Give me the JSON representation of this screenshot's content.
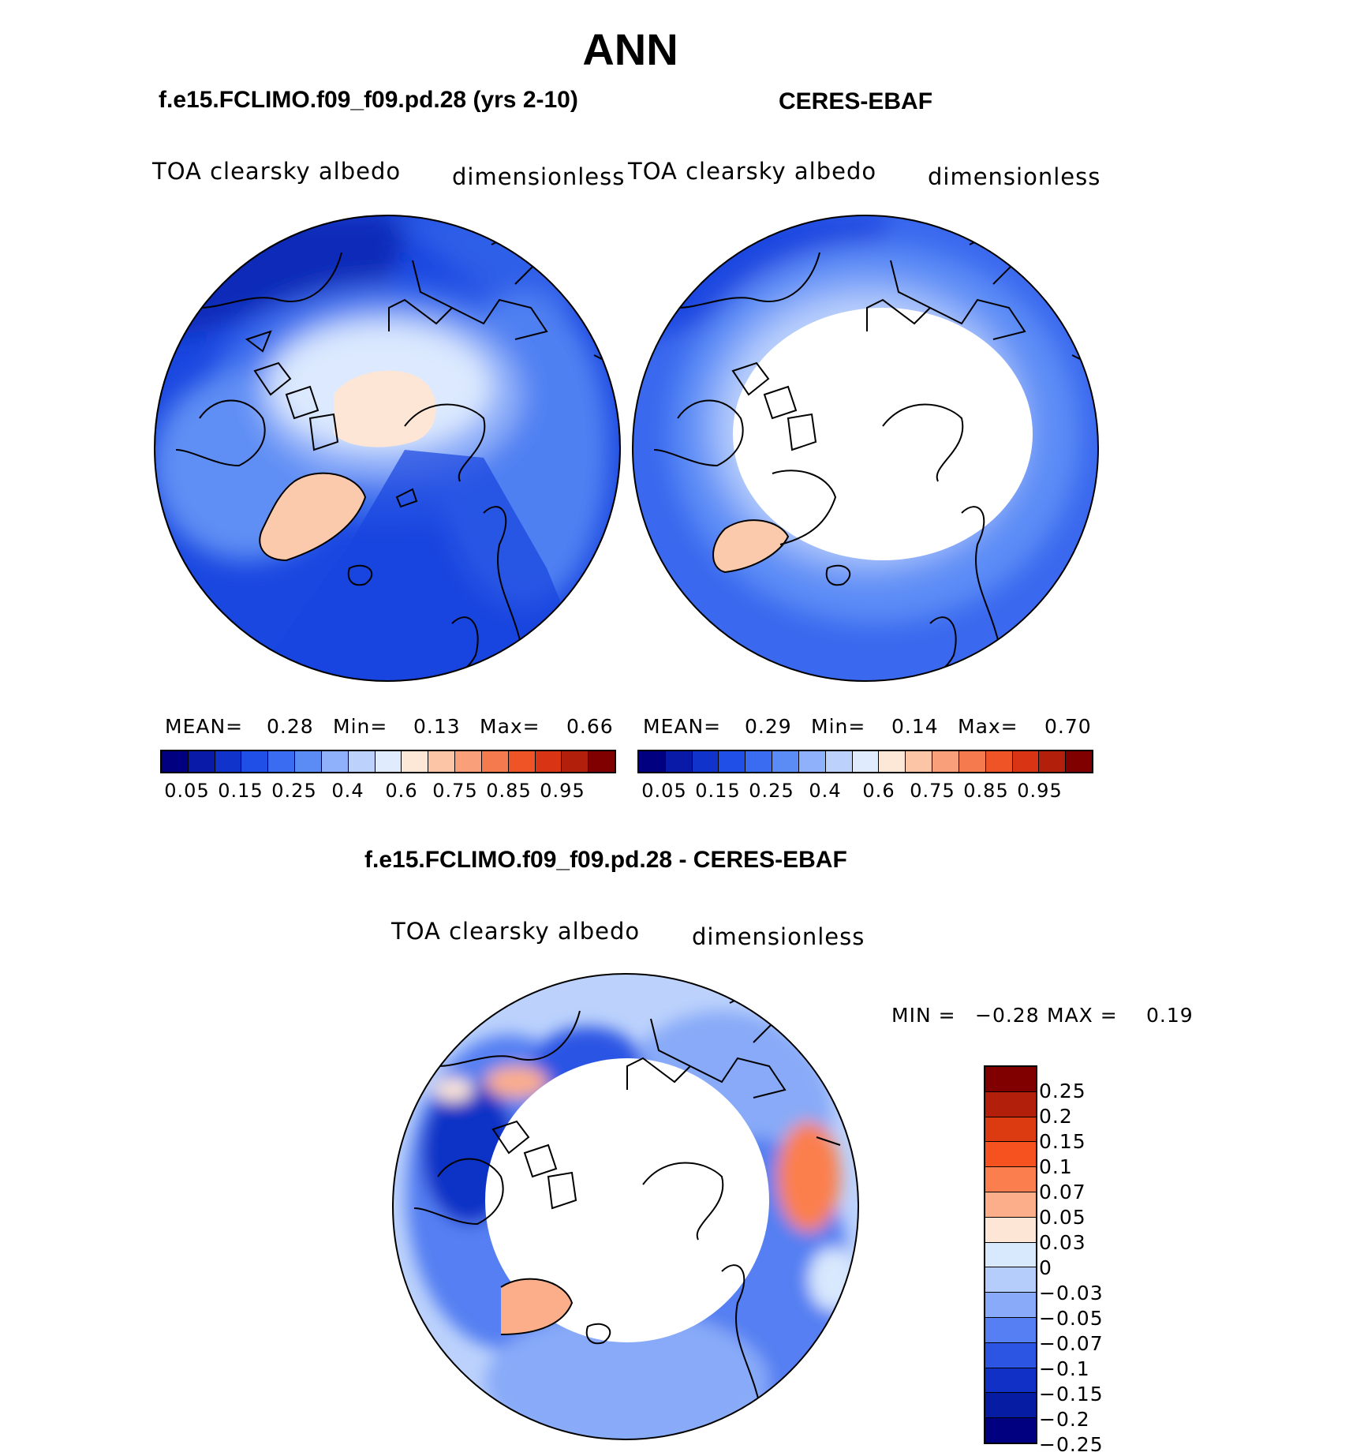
{
  "title": "ANN",
  "panels": [
    {
      "name": "f.e15.FCLIMO.f09_f09.pd.28 (yrs 2-10)",
      "variable": "TOA clearsky albedo",
      "units": "dimensionless",
      "stats": {
        "mean_label": "MEAN=",
        "mean": "0.28",
        "min_label": "Min=",
        "min": "0.13",
        "max_label": "Max=",
        "max": "0.66"
      }
    },
    {
      "name": "CERES-EBAF",
      "variable": "TOA clearsky albedo",
      "units": "dimensionless",
      "stats": {
        "mean_label": "MEAN=",
        "mean": "0.29",
        "min_label": "Min=",
        "min": "0.14",
        "max_label": "Max=",
        "max": "0.70"
      }
    }
  ],
  "colorbar": {
    "colors": [
      "#000080",
      "#0a1aa8",
      "#1033cc",
      "#1f4fe6",
      "#3a6cf2",
      "#5b8cf6",
      "#8fb0fa",
      "#bcd2fc",
      "#e0ecfe",
      "#fde7d7",
      "#fcc5a6",
      "#f9a07a",
      "#f57a4e",
      "#ef5426",
      "#d93413",
      "#b21f0b",
      "#800000"
    ],
    "ticks": [
      "0.05",
      "0.15",
      "0.25",
      "0.4",
      "0.6",
      "0.75",
      "0.85",
      "0.95"
    ]
  },
  "diff": {
    "name": "f.e15.FCLIMO.f09_f09.pd.28 - CERES-EBAF",
    "variable": "TOA clearsky albedo",
    "units": "dimensionless",
    "min_label": "MIN =",
    "min": "−0.28",
    "max_label": "MAX =",
    "max": "0.19",
    "colors": [
      "#800000",
      "#b21f0b",
      "#dc3a10",
      "#f5521f",
      "#fb7f4e",
      "#fcae8a",
      "#fde6d6",
      "#d8e8fd",
      "#b4cdfb",
      "#88aaf8",
      "#557ff2",
      "#2c55e4",
      "#1030c6",
      "#051ca3",
      "#000080"
    ],
    "ticks": [
      "0.25",
      "0.2",
      "0.15",
      "0.1",
      "0.07",
      "0.05",
      "0.03",
      "0",
      "−0.03",
      "−0.05",
      "−0.07",
      "−0.1",
      "−0.15",
      "−0.2",
      "−0.25"
    ]
  }
}
